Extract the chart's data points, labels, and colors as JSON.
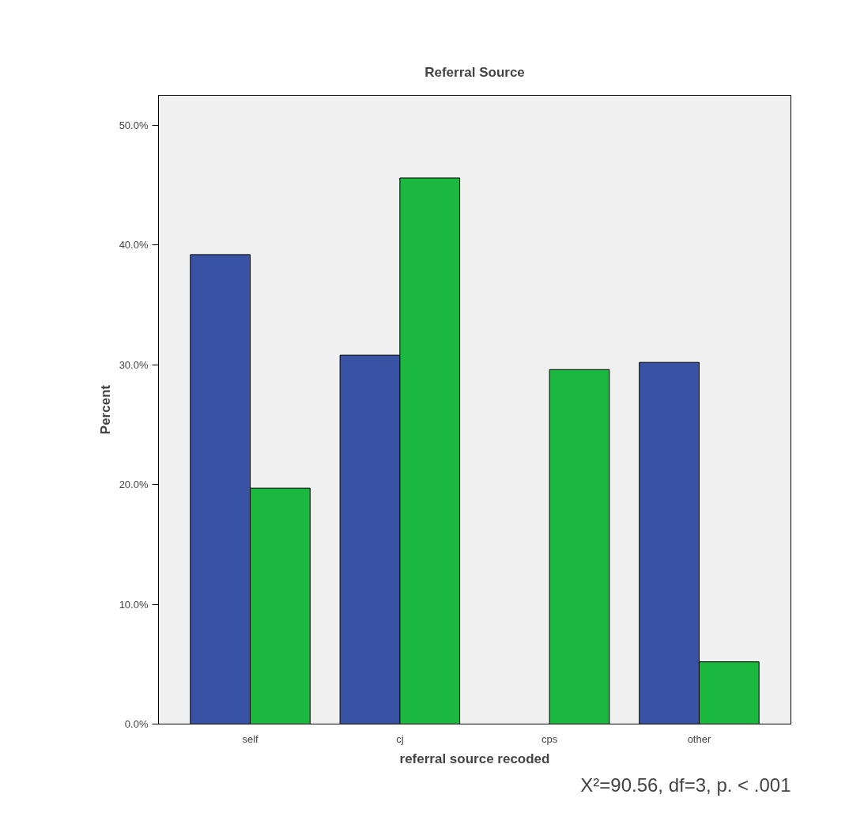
{
  "chart_data": {
    "type": "bar",
    "title": "Referral Source",
    "xlabel": "referral source recoded",
    "ylabel": "Percent",
    "categories": [
      "self",
      "cj",
      "cps",
      "other"
    ],
    "series": [
      {
        "color": "#3953a4",
        "values": [
          39.2,
          30.8,
          0,
          30.2
        ]
      },
      {
        "color": "#1bb83f",
        "values": [
          19.7,
          45.6,
          29.6,
          5.2
        ]
      }
    ],
    "ylim": [
      0,
      52.5
    ],
    "yticks": [
      {
        "value": 0,
        "label": "0.0%"
      },
      {
        "value": 10,
        "label": "10.0%"
      },
      {
        "value": 20,
        "label": "20.0%"
      },
      {
        "value": 30,
        "label": "30.0%"
      },
      {
        "value": 40,
        "label": "40.0%"
      },
      {
        "value": 50,
        "label": "50.0%"
      }
    ],
    "grid": false,
    "annotations": [
      "X²=90.56, df=3, p. < .001"
    ]
  }
}
